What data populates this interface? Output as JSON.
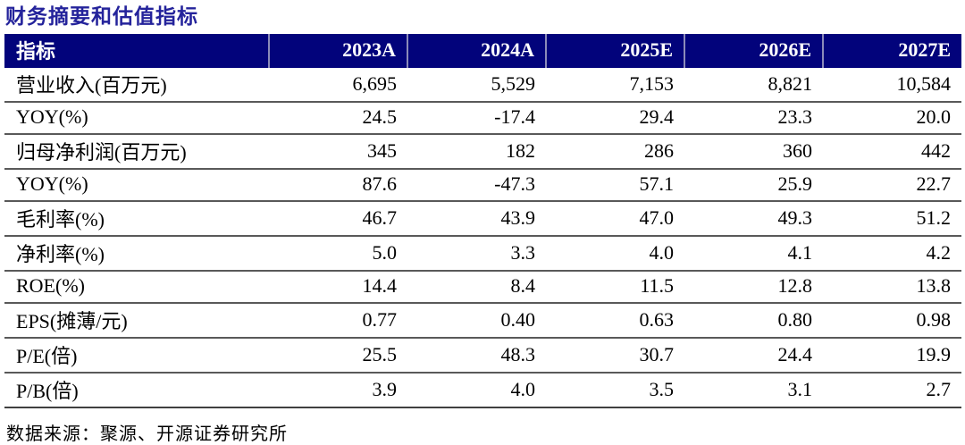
{
  "title": "财务摘要和估值指标",
  "source": "数据来源：聚源、开源证券研究所",
  "colors": {
    "header_bg": "#02037B",
    "header_text": "#FFFFFF",
    "title_color": "#24239B",
    "row_line": "#595959",
    "bottom_line": "#404040"
  },
  "table": {
    "header": [
      "指标",
      "2023A",
      "2024A",
      "2025E",
      "2026E",
      "2027E"
    ],
    "rows": [
      {
        "label": "营业收入(百万元)",
        "values": [
          "6,695",
          "5,529",
          "7,153",
          "8,821",
          "10,584"
        ]
      },
      {
        "label": "YOY(%)",
        "values": [
          "24.5",
          "-17.4",
          "29.4",
          "23.3",
          "20.0"
        ]
      },
      {
        "label": "归母净利润(百万元)",
        "values": [
          "345",
          "182",
          "286",
          "360",
          "442"
        ]
      },
      {
        "label": "YOY(%)",
        "values": [
          "87.6",
          "-47.3",
          "57.1",
          "25.9",
          "22.7"
        ]
      },
      {
        "label": "毛利率(%)",
        "values": [
          "46.7",
          "43.9",
          "47.0",
          "49.3",
          "51.2"
        ]
      },
      {
        "label": "净利率(%)",
        "values": [
          "5.0",
          "3.3",
          "4.0",
          "4.1",
          "4.2"
        ]
      },
      {
        "label": "ROE(%)",
        "values": [
          "14.4",
          "8.4",
          "11.5",
          "12.8",
          "13.8"
        ]
      },
      {
        "label": "EPS(摊薄/元)",
        "values": [
          "0.77",
          "0.40",
          "0.63",
          "0.80",
          "0.98"
        ]
      },
      {
        "label": "P/E(倍)",
        "values": [
          "25.5",
          "48.3",
          "30.7",
          "24.4",
          "19.9"
        ]
      },
      {
        "label": "P/B(倍)",
        "values": [
          "3.9",
          "4.0",
          "3.5",
          "3.1",
          "2.7"
        ]
      }
    ]
  }
}
